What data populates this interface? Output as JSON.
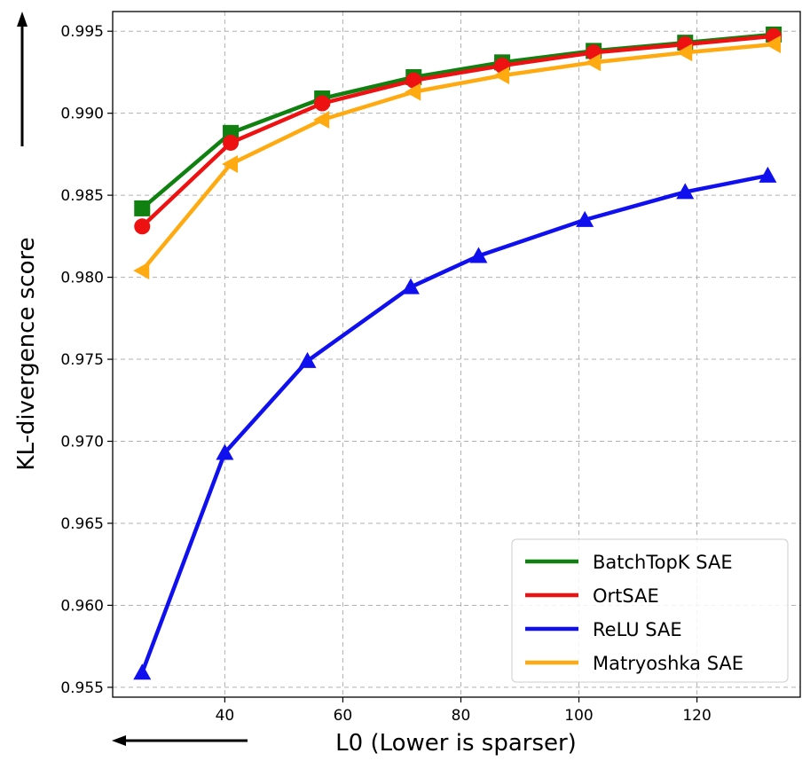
{
  "chart_data": {
    "type": "line",
    "title": "",
    "xlabel": "L0 (Lower is sparser)",
    "ylabel": "KL-divergence score",
    "xlim": [
      21,
      137.5
    ],
    "ylim": [
      0.9544,
      0.9962
    ],
    "xticks": [
      40,
      60,
      80,
      100,
      120
    ],
    "yticks": [
      0.955,
      0.96,
      0.965,
      0.97,
      0.975,
      0.98,
      0.985,
      0.99,
      0.995
    ],
    "xtick_labels": [
      "40",
      "60",
      "80",
      "100",
      "120"
    ],
    "ytick_labels": [
      "0.955",
      "0.960",
      "0.965",
      "0.970",
      "0.975",
      "0.980",
      "0.985",
      "0.990",
      "0.995"
    ],
    "grid": true,
    "legend_position": "lower-right",
    "series": [
      {
        "name": "BatchTopK SAE",
        "color": "#108010",
        "marker": "square",
        "x": [
          26,
          41,
          56.5,
          72,
          87,
          102.5,
          118,
          133
        ],
        "y": [
          0.9842,
          0.9888,
          0.9909,
          0.9922,
          0.9931,
          0.9938,
          0.9943,
          0.9948
        ]
      },
      {
        "name": "OrtSAE",
        "color": "#ee1111",
        "marker": "circle",
        "x": [
          26,
          41,
          56.5,
          72,
          87,
          102.5,
          118,
          133
        ],
        "y": [
          0.9831,
          0.9882,
          0.9906,
          0.992,
          0.9929,
          0.9937,
          0.9942,
          0.9947
        ]
      },
      {
        "name": "ReLU SAE",
        "color": "#1010ee",
        "marker": "triangle-up",
        "x": [
          26,
          40,
          54,
          71.5,
          83,
          101,
          118,
          132
        ],
        "y": [
          0.9559,
          0.9693,
          0.9749,
          0.9794,
          0.9813,
          0.9835,
          0.9852,
          0.9862
        ]
      },
      {
        "name": "Matryoshka SAE",
        "color": "#ffaa11",
        "marker": "triangle-left",
        "x": [
          26,
          41,
          56.5,
          72,
          87,
          102.5,
          118,
          133
        ],
        "y": [
          0.9804,
          0.9869,
          0.9896,
          0.9913,
          0.9923,
          0.9931,
          0.9937,
          0.9942
        ]
      }
    ]
  }
}
